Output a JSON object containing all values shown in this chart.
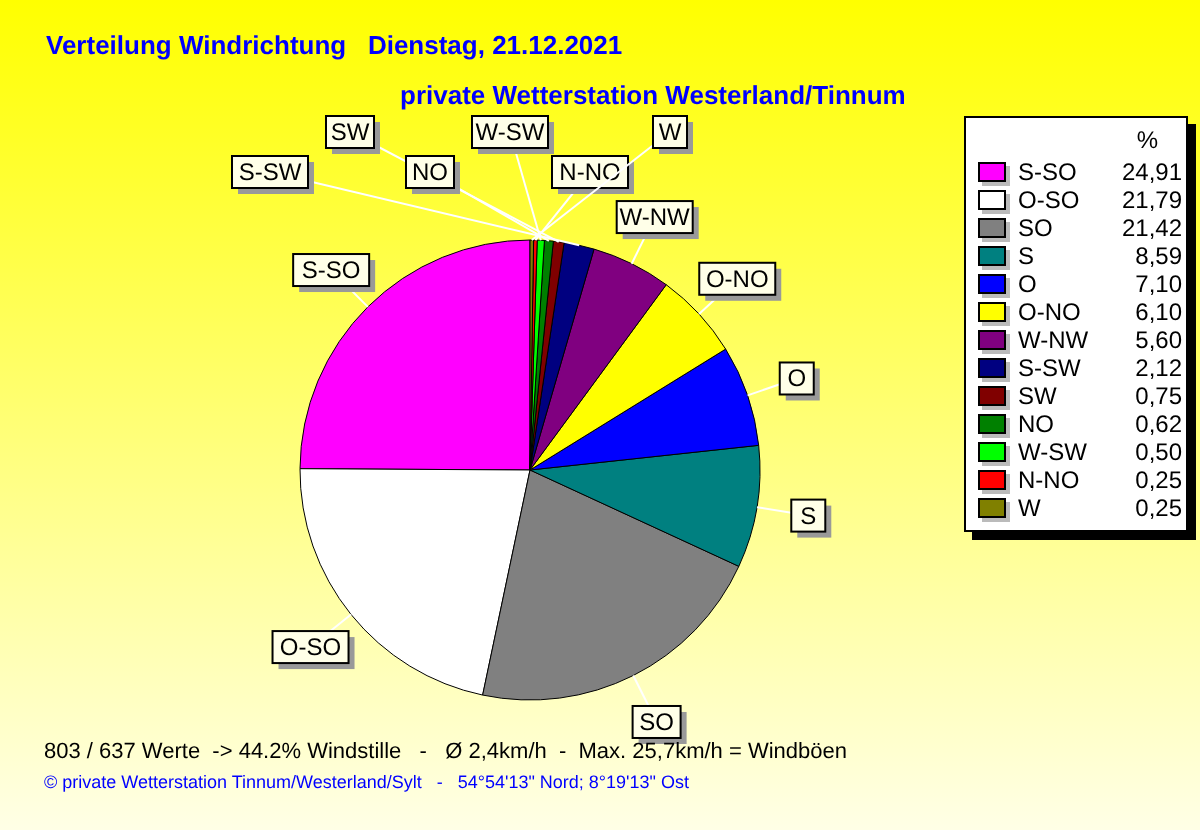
{
  "chart_data": {
    "type": "pie",
    "title": "Verteilung Windrichtung   Dienstag, 21.12.2021",
    "subtitle": "private Wetterstation Westerland/Tinnum",
    "legend_title": "%",
    "categories": [
      "S-SO",
      "O-SO",
      "SO",
      "S",
      "O",
      "O-NO",
      "W-NW",
      "S-SW",
      "SW",
      "NO",
      "W-SW",
      "N-NO",
      "W"
    ],
    "values": [
      24.91,
      21.79,
      21.42,
      8.59,
      7.1,
      6.1,
      5.6,
      2.12,
      0.75,
      0.62,
      0.5,
      0.25,
      0.25
    ],
    "colors": [
      "#ff00ff",
      "#ffffff",
      "#808080",
      "#008080",
      "#0000ff",
      "#ffff00",
      "#800080",
      "#000080",
      "#800000",
      "#008000",
      "#00ff00",
      "#ff0000",
      "#808000"
    ],
    "value_labels": [
      "24,91",
      "21,79",
      "21,42",
      "8,59",
      "7,10",
      "6,10",
      "5,60",
      "2,12",
      "0,75",
      "0,62",
      "0,50",
      "0,25",
      "0,25"
    ],
    "legend": "right",
    "annotations": [
      "803 / 637 Werte  -> 44.2% Windstille   -   Ø 2,4km/h  -  Max. 25,7km/h = Windböen",
      "© private Wetterstation Tinnum/Westerland/Sylt   -   54°54'13\" Nord; 8°19'13\" Ost"
    ]
  }
}
